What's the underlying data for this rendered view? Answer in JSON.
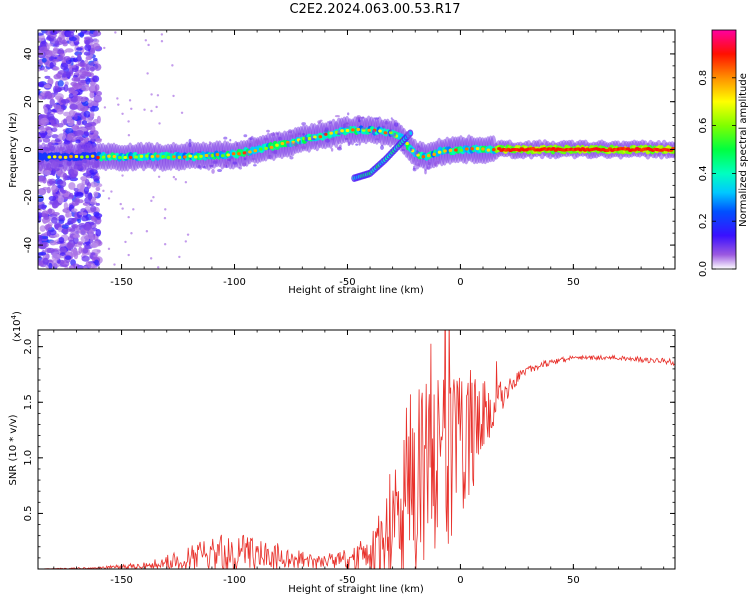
{
  "title": "C2E2.2024.063.00.53.R17",
  "chart_data": [
    {
      "type": "heatmap",
      "name": "spectrogram",
      "xlabel": "Height of straight line (km)",
      "ylabel": "Frequency (Hz)",
      "xlim": [
        -187,
        95
      ],
      "ylim": [
        -50,
        50
      ],
      "xticks": [
        -150,
        -100,
        -50,
        0,
        50
      ],
      "yticks": [
        -40,
        -20,
        0,
        20,
        40
      ],
      "colorbar": {
        "label": "Normalized spectral amplitude",
        "range": [
          0,
          1
        ],
        "ticks": [
          "0.0",
          "0.2",
          "0.4",
          "0.6",
          "0.8"
        ],
        "colors": [
          "#ffffff",
          "#7b1fd0",
          "#1010ff",
          "#00c8ff",
          "#00ff60",
          "#aaff00",
          "#ffff00",
          "#ff8000",
          "#ff0000",
          "#ff00a0"
        ]
      },
      "ridge": {
        "x": [
          -187,
          -160,
          -140,
          -120,
          -100,
          -80,
          -65,
          -50,
          -40,
          -30,
          -25,
          -20,
          -15,
          -10,
          0,
          10,
          20,
          50,
          95
        ],
        "y": [
          -3,
          -3,
          -3,
          -3,
          -2,
          2,
          5,
          8,
          8,
          7,
          4,
          -2,
          -3,
          -1,
          0,
          0,
          0,
          0,
          0
        ]
      },
      "branch": {
        "x": [
          -47,
          -40,
          -33,
          -27,
          -22
        ],
        "y": [
          -12,
          -10,
          -4,
          2,
          7
        ]
      }
    },
    {
      "type": "line",
      "name": "snr",
      "xlabel": "Height of straight line (km)",
      "ylabel": "SNR (10 * v/v)",
      "yscale_label": "(x10",
      "yscale_exp": "4",
      "yscale_close": ")",
      "xlim": [
        -187,
        95
      ],
      "ylim": [
        0,
        2.15
      ],
      "xticks": [
        -150,
        -100,
        -50,
        0,
        50
      ],
      "yticks": [
        0.5,
        1.0,
        1.5,
        2.0
      ],
      "ytick_labels": [
        "0.5",
        "1.0",
        "1.5",
        "2.0"
      ],
      "color": "#e8302a",
      "envelope": {
        "x": [
          -187,
          -160,
          -140,
          -125,
          -110,
          -100,
          -90,
          -80,
          -70,
          -60,
          -50,
          -40,
          -35,
          -30,
          -25,
          -20,
          -15,
          -10,
          -5,
          0,
          5,
          10,
          15,
          20,
          25,
          30,
          40,
          50,
          70,
          95
        ],
        "base": [
          0.0,
          0.01,
          0.03,
          0.08,
          0.14,
          0.13,
          0.12,
          0.11,
          0.08,
          0.07,
          0.08,
          0.12,
          0.2,
          0.35,
          0.6,
          0.85,
          0.95,
          0.95,
          1.0,
          1.1,
          1.25,
          1.35,
          1.45,
          1.6,
          1.72,
          1.8,
          1.86,
          1.9,
          1.9,
          1.86
        ],
        "amp": [
          0.0,
          0.01,
          0.03,
          0.08,
          0.15,
          0.2,
          0.15,
          0.12,
          0.08,
          0.07,
          0.1,
          0.2,
          0.35,
          0.55,
          0.8,
          0.9,
          0.85,
          0.8,
          0.8,
          0.7,
          0.6,
          0.35,
          0.2,
          0.12,
          0.07,
          0.04,
          0.03,
          0.02,
          0.02,
          0.03
        ]
      }
    }
  ]
}
